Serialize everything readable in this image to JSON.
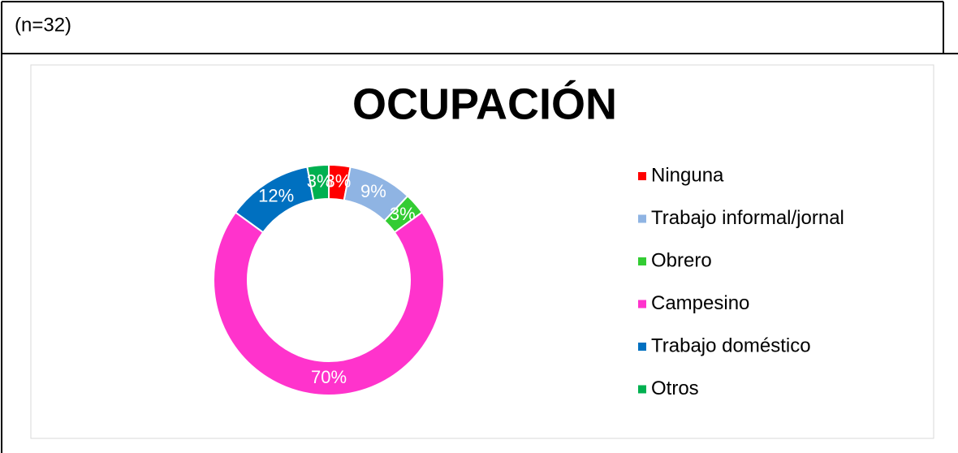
{
  "chart_data": {
    "type": "donut",
    "annotation": "(n=32)",
    "title": "OCUPACIÓN",
    "categories": [
      "Ninguna",
      "Trabajo informal/jornal",
      "Obrero",
      "Campesino",
      "Trabajo doméstico",
      "Otros"
    ],
    "values": [
      3,
      9,
      3,
      70,
      12,
      3
    ],
    "value_labels": [
      "3%",
      "9%",
      "3%",
      "70%",
      "12%",
      "3%"
    ],
    "colors": [
      "#ff0000",
      "#8fb4e3",
      "#33cc33",
      "#ff33cc",
      "#0070c0",
      "#00b050"
    ],
    "legend": "right"
  }
}
